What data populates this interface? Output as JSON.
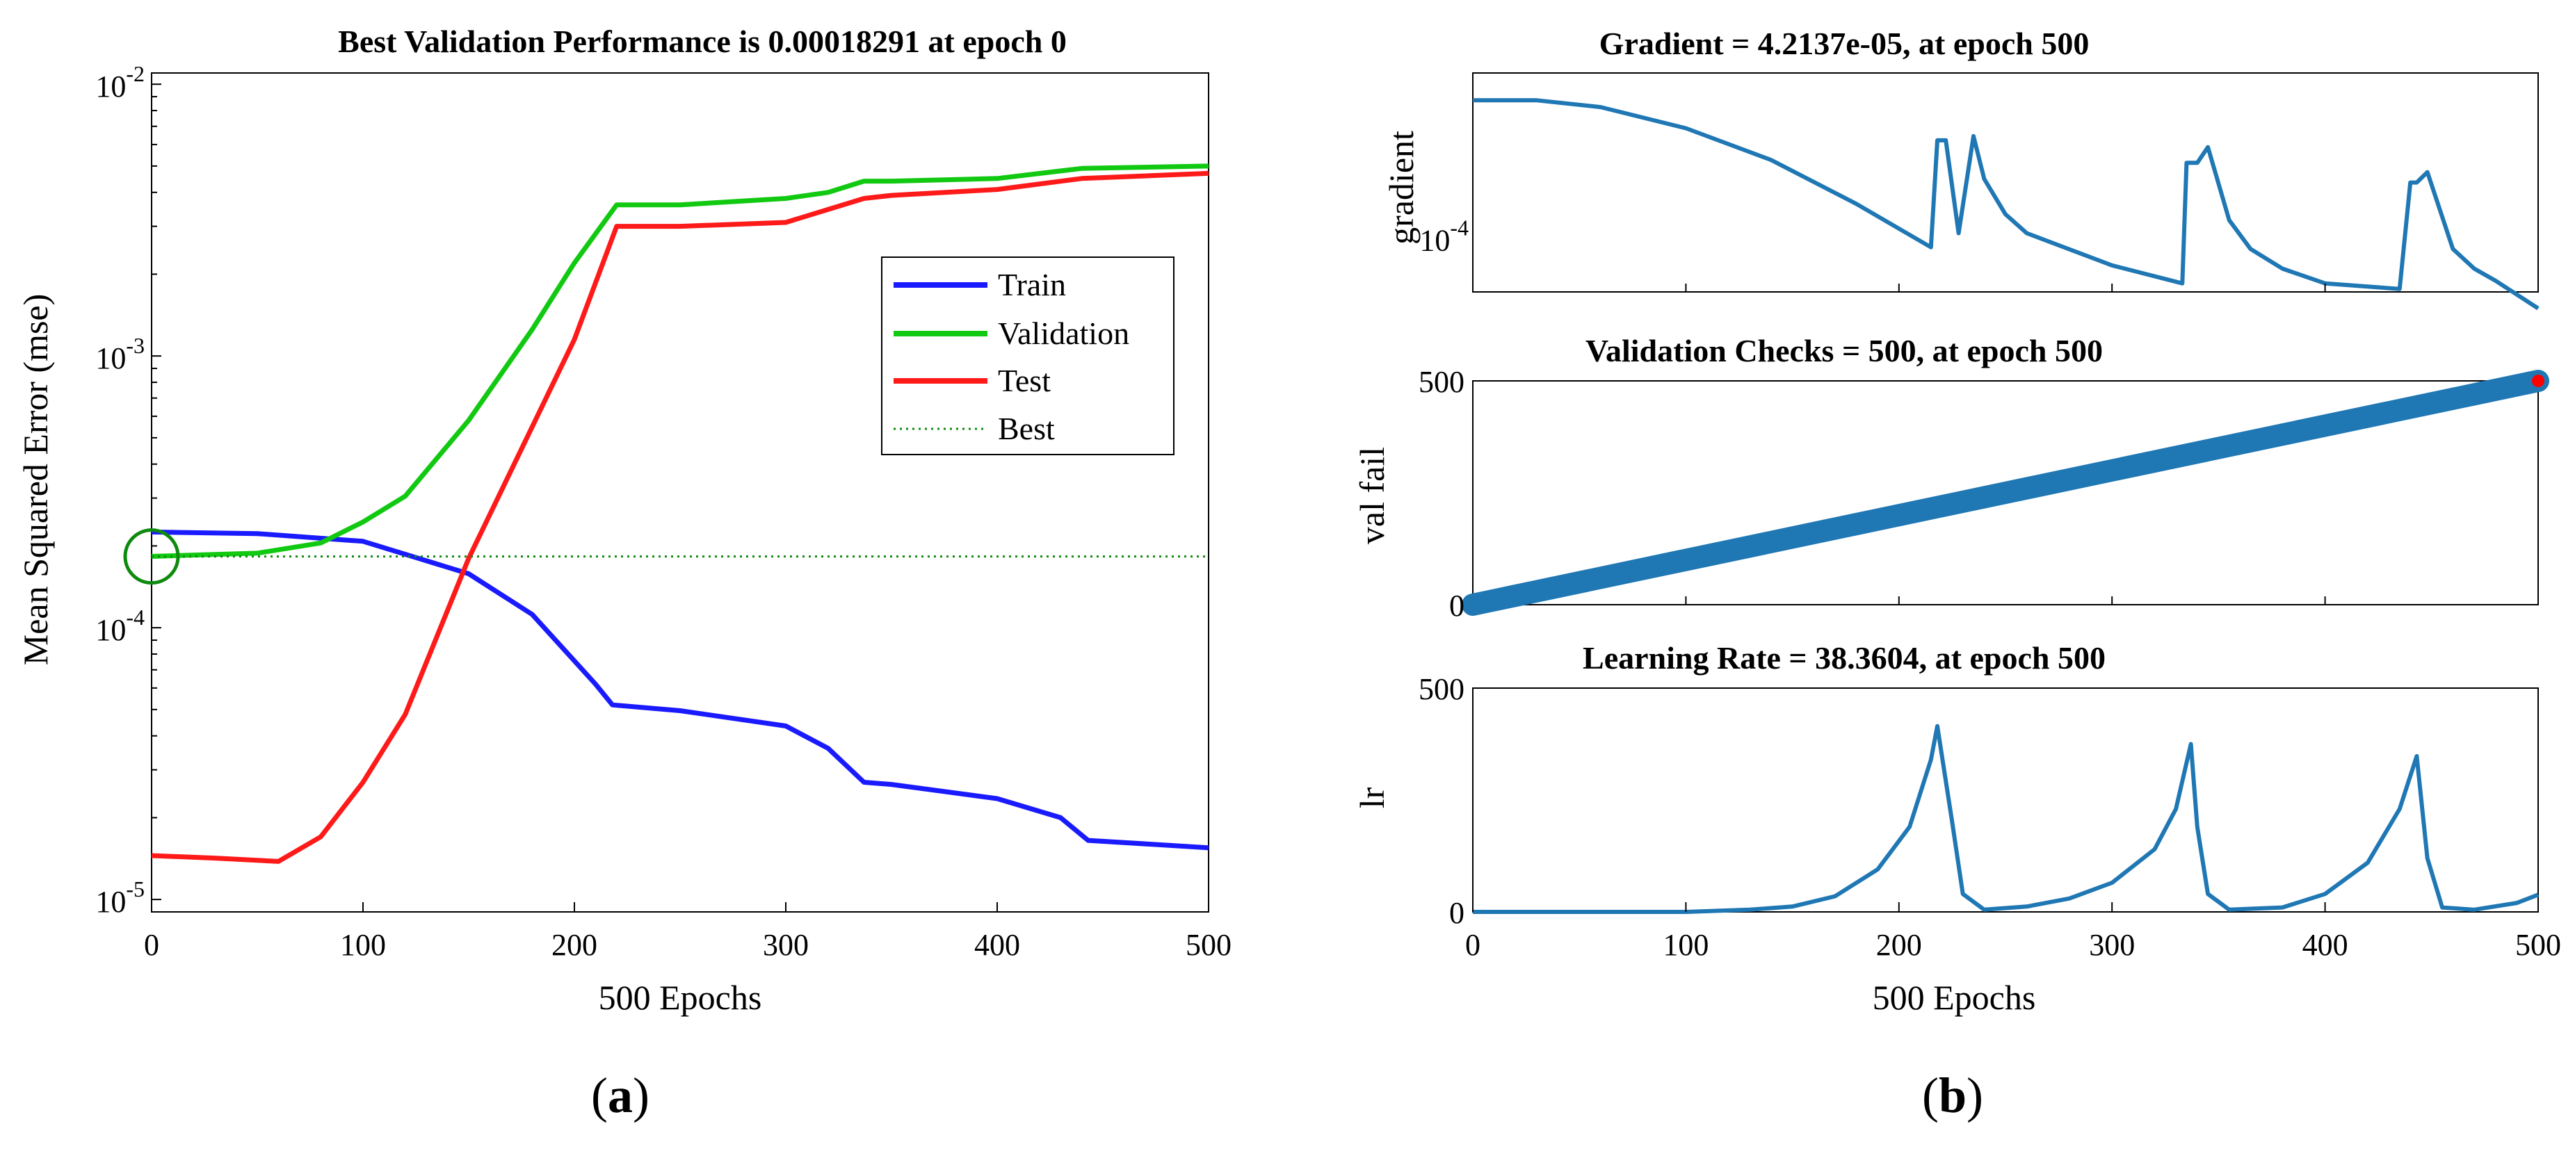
{
  "chart_data": [
    {
      "type": "line",
      "panel": "a",
      "title": "Best Validation Performance is 0.00018291 at epoch 0",
      "xlabel": "500 Epochs",
      "ylabel": "Mean Squared Error  (mse)",
      "yscale": "log",
      "xlim": [
        0,
        500
      ],
      "ylim": [
        9e-06,
        0.011
      ],
      "xticks": [
        0,
        100,
        200,
        300,
        400,
        500
      ],
      "xtick_labels": [
        "0",
        "100",
        "200",
        "300",
        "400",
        "500"
      ],
      "yticks": [
        1e-05,
        0.0001,
        0.001,
        0.01
      ],
      "ytick_labels": [
        {
          "base": "10",
          "exp": "-5"
        },
        {
          "base": "10",
          "exp": "-4"
        },
        {
          "base": "10",
          "exp": "-3"
        },
        {
          "base": "10",
          "exp": "-2"
        }
      ],
      "legend": {
        "position": "upper-right",
        "entries": [
          "Train",
          "Validation",
          "Test",
          "Best"
        ]
      },
      "best": {
        "epoch": 0,
        "value": 0.00018291
      },
      "series": [
        {
          "name": "Train",
          "color": "#1a1aff",
          "x": [
            0,
            50,
            100,
            150,
            180,
            210,
            218,
            250,
            300,
            320,
            337,
            350,
            400,
            430,
            443,
            500
          ],
          "y": [
            0.000225,
            0.000222,
            0.000208,
            0.000158,
            0.000112,
            6.2e-05,
            5.2e-05,
            4.95e-05,
            4.35e-05,
            3.6e-05,
            2.7e-05,
            2.65e-05,
            2.35e-05,
            2e-05,
            1.65e-05,
            1.55e-05
          ]
        },
        {
          "name": "Validation",
          "color": "#12c912",
          "x": [
            0,
            50,
            80,
            100,
            120,
            150,
            180,
            200,
            220,
            250,
            300,
            320,
            337,
            350,
            400,
            440,
            500
          ],
          "y": [
            0.000183,
            0.000188,
            0.000205,
            0.000245,
            0.000305,
            0.00058,
            0.00125,
            0.0022,
            0.0036,
            0.0036,
            0.0038,
            0.004,
            0.0044,
            0.0044,
            0.0045,
            0.0049,
            0.005
          ]
        },
        {
          "name": "Test",
          "color": "#ff1a1a",
          "x": [
            0,
            30,
            60,
            80,
            100,
            120,
            150,
            200,
            220,
            250,
            300,
            337,
            350,
            400,
            440,
            500
          ],
          "y": [
            1.45e-05,
            1.42e-05,
            1.38e-05,
            1.7e-05,
            2.7e-05,
            4.8e-05,
            0.00018,
            0.00115,
            0.003,
            0.003,
            0.0031,
            0.0038,
            0.0039,
            0.0041,
            0.0045,
            0.0047
          ]
        },
        {
          "name": "Best",
          "color": "#0e8a0e",
          "style": "dotted",
          "x": [
            0,
            500
          ],
          "y": [
            0.00018291,
            0.00018291
          ]
        }
      ]
    },
    {
      "type": "line",
      "panel": "b-top",
      "title": "Gradient = 4.2137e-05, at epoch 500",
      "ylabel": "gradient",
      "yscale": "log",
      "xlim": [
        0,
        500
      ],
      "ylim": [
        5.2e-05,
        0.00085
      ],
      "ytick_labels": [
        {
          "base": "10",
          "exp": "-4",
          "value": 0.0001
        }
      ],
      "series": [
        {
          "name": "gradient",
          "color": "#1f77b4",
          "x": [
            0,
            30,
            60,
            100,
            140,
            180,
            215,
            218,
            222,
            228,
            235,
            240,
            250,
            260,
            300,
            333,
            335,
            340,
            345,
            355,
            365,
            380,
            400,
            435,
            440,
            443,
            448,
            460,
            470,
            480,
            500
          ],
          "y": [
            0.0006,
            0.0006,
            0.00055,
            0.00042,
            0.00028,
            0.00016,
            9.2e-05,
            0.00036,
            0.00036,
            0.00011,
            0.00038,
            0.00022,
            0.00014,
            0.00011,
            7.3e-05,
            5.8e-05,
            0.00027,
            0.00027,
            0.00033,
            0.00013,
            9e-05,
            7e-05,
            5.8e-05,
            5.4e-05,
            0.00021,
            0.00021,
            0.00024,
            9e-05,
            7e-05,
            6e-05,
            4.2137e-05
          ]
        }
      ]
    },
    {
      "type": "scatter",
      "panel": "b-middle",
      "title": "Validation Checks = 500, at epoch 500",
      "ylabel": "val fail",
      "xlim": [
        0,
        500
      ],
      "ylim": [
        0,
        500
      ],
      "yticks": [
        0,
        500
      ],
      "ytick_labels": [
        "0",
        "500"
      ],
      "series": [
        {
          "name": "val fail",
          "color": "#1f77b4",
          "x": [
            0,
            500
          ],
          "y": [
            0,
            500
          ]
        },
        {
          "name": "final",
          "color": "#ff0000",
          "x": [
            500
          ],
          "y": [
            500
          ]
        }
      ]
    },
    {
      "type": "line",
      "panel": "b-bottom",
      "title": "Learning Rate = 38.3604, at epoch 500",
      "xlabel": "500 Epochs",
      "ylabel": "lr",
      "xlim": [
        0,
        500
      ],
      "ylim": [
        0,
        500
      ],
      "xticks": [
        0,
        100,
        200,
        300,
        400,
        500
      ],
      "xtick_labels": [
        "0",
        "100",
        "200",
        "300",
        "400",
        "500"
      ],
      "yticks": [
        0,
        500
      ],
      "ytick_labels": [
        "0",
        "500"
      ],
      "series": [
        {
          "name": "lr",
          "color": "#1f77b4",
          "x": [
            0,
            100,
            130,
            150,
            170,
            190,
            205,
            215,
            218,
            225,
            230,
            240,
            260,
            280,
            300,
            320,
            330,
            337,
            340,
            345,
            355,
            380,
            400,
            420,
            435,
            443,
            448,
            455,
            470,
            490,
            500
          ],
          "y": [
            0,
            0,
            5,
            12,
            35,
            95,
            190,
            340,
            415,
            200,
            40,
            5,
            12,
            30,
            65,
            140,
            230,
            375,
            190,
            40,
            5,
            10,
            40,
            110,
            230,
            348,
            120,
            10,
            5,
            20,
            38.36
          ]
        }
      ]
    }
  ],
  "labels": {
    "a": "a",
    "b": "b"
  }
}
